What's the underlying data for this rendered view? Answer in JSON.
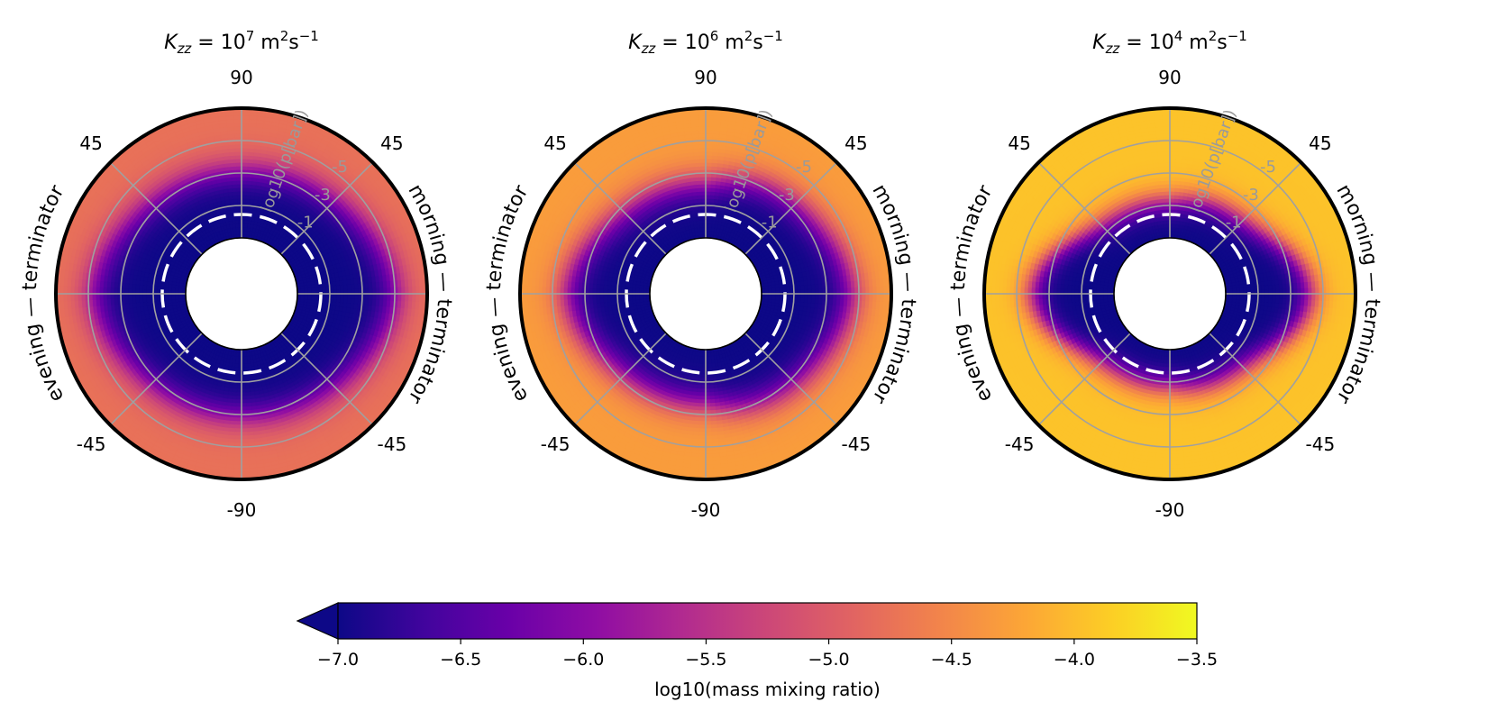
{
  "chart_data": {
    "type": "polar-heatmap",
    "colormap": "plasma",
    "colorbar": {
      "label": "log10(mass mixing ratio)",
      "range": [
        -7.0,
        -3.5
      ],
      "extend": "min",
      "ticks": [
        -7.0,
        -6.5,
        -6.0,
        -5.5,
        -5.0,
        -4.5,
        -4.0,
        -3.5
      ],
      "tick_labels": [
        "−7.0",
        "−6.5",
        "−6.0",
        "−5.5",
        "−5.0",
        "−4.5",
        "−4.0",
        "−3.5"
      ]
    },
    "latitude_ticks": [
      {
        "deg": 90,
        "label": "90"
      },
      {
        "deg": 45,
        "label": "45"
      },
      {
        "deg": -45,
        "label": "-45"
      },
      {
        "deg": -90,
        "label": "-90"
      }
    ],
    "pressure_axis": {
      "label": "log10(p[bar])",
      "ticks": [
        -1,
        -3,
        -5
      ],
      "tick_labels": [
        "-1",
        "-3",
        "-5"
      ],
      "range": [
        1,
        -7
      ]
    },
    "side_labels": {
      "left": "evening — terminator",
      "right": "morning — terminator"
    },
    "panels": [
      {
        "title_base": "K",
        "title_sub": "zz",
        "title_mid": " = 10",
        "title_exp": "7",
        "title_units": " m",
        "title_units_exp1": "2",
        "title_units_mid": "s",
        "title_units_exp2": "−1",
        "field": {
          "base": -7.0,
          "top": -4.75,
          "transition_p": -4.2,
          "width": 0.55,
          "morning_shift": 0.35,
          "pole_shift": 1.0,
          "equator_bulge": 0.6,
          "morning_bulge": 0
        }
      },
      {
        "title_base": "K",
        "title_sub": "zz",
        "title_mid": " = 10",
        "title_exp": "6",
        "title_units": " m",
        "title_units_exp1": "2",
        "title_units_mid": "s",
        "title_units_exp2": "−1",
        "field": {
          "base": -7.0,
          "top": -4.3,
          "transition_p": -3.3,
          "width": 0.55,
          "morning_shift": 0.45,
          "pole_shift": 0.9,
          "equator_bulge": 0.9,
          "morning_bulge": 0.6
        }
      },
      {
        "title_base": "K",
        "title_sub": "zz",
        "title_mid": " = 10",
        "title_exp": "4",
        "title_units": " m",
        "title_units_exp1": "2",
        "title_units_mid": "s",
        "title_units_exp2": "−1",
        "field": {
          "base": -7.0,
          "top": -3.95,
          "transition_p": -1.9,
          "width": 0.45,
          "morning_shift": 0.2,
          "pole_shift": 0.6,
          "equator_bulge": 2.2,
          "morning_bulge": 0.4
        }
      }
    ]
  }
}
